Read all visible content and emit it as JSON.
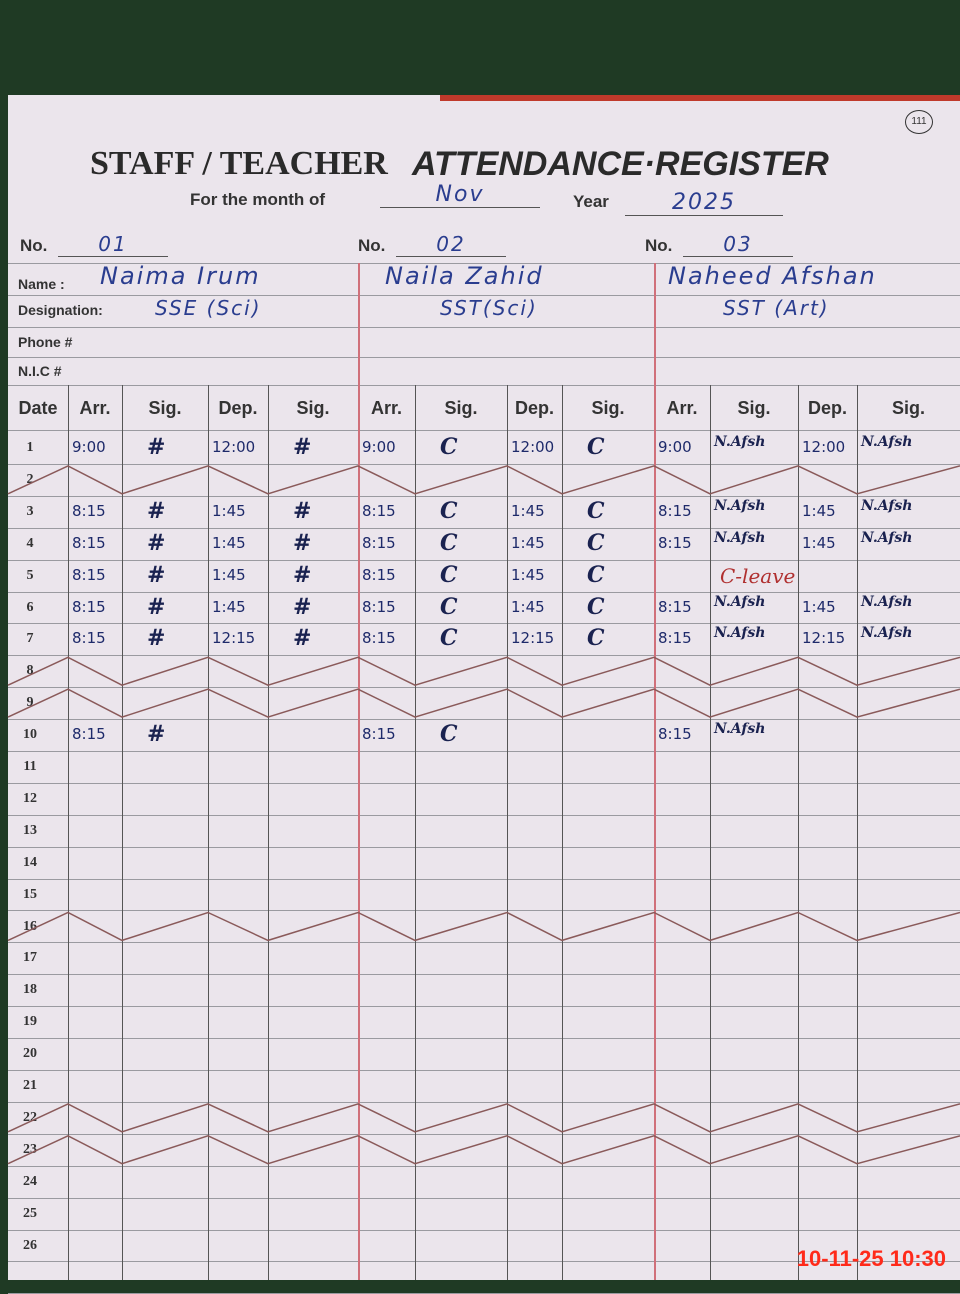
{
  "header": {
    "title_part1": "STAFF / TEACHER",
    "title_part2": "ATTENDANCE·REGISTER",
    "month_label": "For the month of",
    "month": "Nov",
    "year_label": "Year",
    "year": "2025",
    "page_number": "111"
  },
  "labels": {
    "no": "No.",
    "name": "Name :",
    "designation": "Designation:",
    "phone": "Phone #",
    "nic": "N.I.C #"
  },
  "teachers": [
    {
      "no": "01",
      "name": "Naima Irum",
      "designation": "SSE (Sci)"
    },
    {
      "no": "02",
      "name": "Naila Zahid",
      "designation": "SST(Sci)"
    },
    {
      "no": "03",
      "name": "Naheed Afshan",
      "designation": "SST (Art)"
    }
  ],
  "columns": [
    "Date",
    "Arr.",
    "Sig.",
    "Dep.",
    "Sig.",
    "Arr.",
    "Sig.",
    "Dep.",
    "Sig.",
    "Arr.",
    "Sig.",
    "Dep.",
    "Sig."
  ],
  "days": [
    "1",
    "2",
    "3",
    "4",
    "5",
    "6",
    "7",
    "8",
    "9",
    "10",
    "11",
    "12",
    "13",
    "14",
    "15",
    "16",
    "17",
    "18",
    "19",
    "20",
    "21",
    "22",
    "23",
    "24",
    "25",
    "26"
  ],
  "holiday_rows": [
    2,
    8,
    9,
    16,
    22,
    23
  ],
  "entries": [
    {
      "day": 1,
      "t": [
        [
          "9:00",
          true,
          "12:00",
          true
        ],
        [
          "9:00",
          true,
          "12:00",
          true
        ],
        [
          "9:00",
          true,
          "12:00",
          true
        ]
      ]
    },
    {
      "day": 3,
      "t": [
        [
          "8:15",
          true,
          "1:45",
          true
        ],
        [
          "8:15",
          true,
          "1:45",
          true
        ],
        [
          "8:15",
          true,
          "1:45",
          true
        ]
      ]
    },
    {
      "day": 4,
      "t": [
        [
          "8:15",
          true,
          "1:45",
          true
        ],
        [
          "8:15",
          true,
          "1:45",
          true
        ],
        [
          "8:15",
          true,
          "1:45",
          true
        ]
      ]
    },
    {
      "day": 5,
      "t": [
        [
          "8:15",
          true,
          "1:45",
          true
        ],
        [
          "8:15",
          true,
          "1:45",
          true
        ],
        null
      ],
      "note3": "C-leave"
    },
    {
      "day": 6,
      "t": [
        [
          "8:15",
          true,
          "1:45",
          true
        ],
        [
          "8:15",
          true,
          "1:45",
          true
        ],
        [
          "8:15",
          true,
          "1:45",
          true
        ]
      ]
    },
    {
      "day": 7,
      "t": [
        [
          "8:15",
          true,
          "12:15",
          true
        ],
        [
          "8:15",
          true,
          "12:15",
          true
        ],
        [
          "8:15",
          true,
          "12:15",
          true
        ]
      ]
    },
    {
      "day": 10,
      "t": [
        [
          "8:15",
          true,
          "",
          false
        ],
        [
          "8:15",
          true,
          "",
          false
        ],
        [
          "8:15",
          true,
          "",
          false
        ]
      ]
    }
  ],
  "timestamp": "10-11-25  10:30",
  "colors": {
    "ink": "#1e2a6a",
    "rule_red": "#d0707a",
    "stamp": "#ff2a1a"
  }
}
